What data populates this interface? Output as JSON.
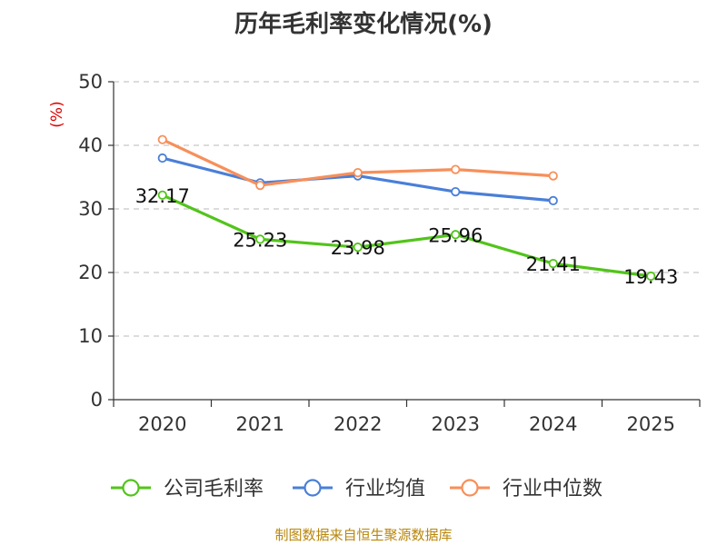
{
  "chart_data": {
    "type": "line",
    "title": "历年毛利率变化情况(%)",
    "ylabel": "(%)",
    "xlabel": "",
    "categories": [
      "2020",
      "2021",
      "2022",
      "2023",
      "2024",
      "2025"
    ],
    "ylim": [
      0,
      50
    ],
    "yticks": [
      0,
      10,
      20,
      30,
      40,
      50
    ],
    "grid": true,
    "legend_position": "bottom",
    "series": [
      {
        "name": "公司毛利率",
        "color": "#52c41a",
        "values": [
          32.17,
          25.23,
          23.98,
          25.96,
          21.41,
          19.43
        ],
        "labels": [
          "32.17",
          "25.23",
          "23.98",
          "25.96",
          "21.41",
          "19.43"
        ]
      },
      {
        "name": "行业均值",
        "color": "#4a7fd8",
        "values": [
          38.0,
          34.1,
          35.2,
          32.7,
          31.3,
          null
        ]
      },
      {
        "name": "行业中位数",
        "color": "#f78f5a",
        "values": [
          40.9,
          33.7,
          35.7,
          36.2,
          35.2,
          null
        ]
      }
    ]
  },
  "source": "制图数据来自恒生聚源数据库"
}
